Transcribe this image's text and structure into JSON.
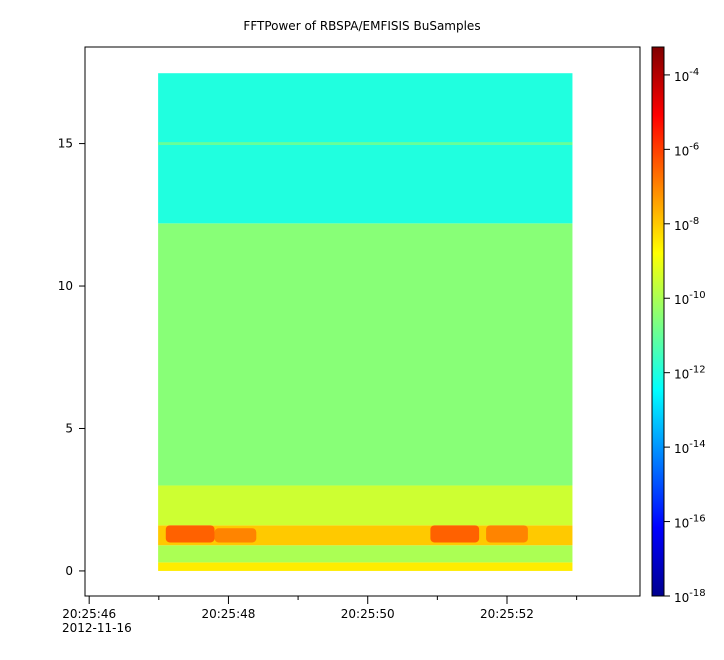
{
  "chart_data": {
    "type": "spectrogram",
    "title": "FFTPower of RBSPA/EMFISIS  BuSamples",
    "date_label": "2012-11-16",
    "xlim": [
      45.94,
      53.91
    ],
    "xticks": [
      {
        "value": 46,
        "label": "20:25:46"
      },
      {
        "value": 48,
        "label": "20:25:48"
      },
      {
        "value": 50,
        "label": "20:25:50"
      },
      {
        "value": 52,
        "label": "20:25:52"
      }
    ],
    "xminor": [
      47,
      49,
      51,
      53
    ],
    "ylim": [
      -0.88,
      18.39
    ],
    "yticks": [
      0,
      5,
      10,
      15
    ],
    "x_extent": [
      46.99,
      52.94
    ],
    "bands": {
      "y0": [
        0,
        0.3,
        0.9,
        1.6,
        3,
        12.2,
        14.95
      ],
      "y1": [
        0.3,
        0.9,
        1.6,
        3,
        12.2,
        17.47,
        15.05
      ],
      "values": [
        -8.5,
        -10,
        -8,
        -9.5,
        -10.5,
        -12,
        -11
      ]
    },
    "bursts": {
      "x0": [
        47.1,
        47.8,
        50.9,
        51.7
      ],
      "x1": [
        47.8,
        48.4,
        51.6,
        52.3
      ],
      "y0": [
        1.0,
        1.0,
        1.0,
        1.0
      ],
      "y1": [
        1.6,
        1.5,
        1.6,
        1.6
      ],
      "values": [
        -6.5,
        -7,
        -6.5,
        -7
      ]
    },
    "colorbar": {
      "log_scale": true,
      "base": "10",
      "clim": [
        -18,
        -3.25
      ],
      "cticks": [
        -18,
        -16,
        -14,
        -12,
        -10,
        -8,
        -6,
        -4
      ]
    }
  }
}
